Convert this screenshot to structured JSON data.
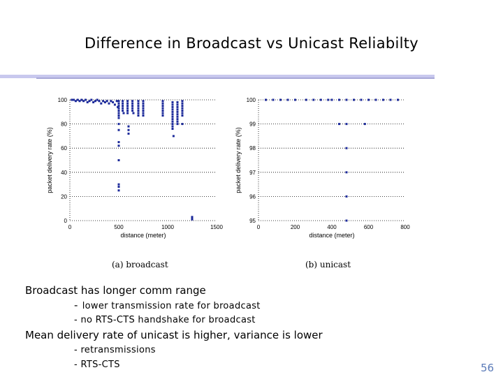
{
  "slide": {
    "title": "Difference in Broadcast vs Unicast Reliabilty",
    "page_number": "56",
    "colors": {
      "title_rule": "#c8c8ee",
      "marker": "#1c2a9a",
      "page_number": "#5a7ab8"
    }
  },
  "bullets": [
    {
      "text": "Broadcast has longer comm range",
      "subs": [
        {
          "dash": "-",
          "text": "lower transmission rate for broadcast"
        },
        {
          "dash": "-",
          "text": "no RTS-CTS handshake for broadcast"
        }
      ]
    },
    {
      "text": "Mean delivery rate of unicast is higher, variance is lower",
      "subs": [
        {
          "dash": "-",
          "text": "retransmissions"
        },
        {
          "dash": "-",
          "text": "RTS-CTS"
        }
      ]
    }
  ],
  "chart_data": [
    {
      "type": "scatter",
      "caption": "(a) broadcast",
      "xlabel": "distance (meter)",
      "ylabel": "packet delivery rate (%)",
      "xlim": [
        0,
        1500
      ],
      "ylim": [
        0,
        100
      ],
      "xticks": [
        0,
        500,
        1000,
        1500
      ],
      "yticks": [
        0,
        20,
        40,
        60,
        80,
        100
      ],
      "grid": "horizontal dotted",
      "points": [
        [
          20,
          100
        ],
        [
          40,
          100
        ],
        [
          60,
          99
        ],
        [
          80,
          100
        ],
        [
          100,
          99
        ],
        [
          120,
          100
        ],
        [
          140,
          99
        ],
        [
          160,
          100
        ],
        [
          180,
          98
        ],
        [
          200,
          99
        ],
        [
          220,
          100
        ],
        [
          240,
          98
        ],
        [
          260,
          99
        ],
        [
          280,
          100
        ],
        [
          300,
          99
        ],
        [
          320,
          97
        ],
        [
          340,
          99
        ],
        [
          360,
          98
        ],
        [
          380,
          99
        ],
        [
          400,
          97
        ],
        [
          420,
          99
        ],
        [
          440,
          98
        ],
        [
          460,
          96
        ],
        [
          480,
          99
        ],
        [
          490,
          94
        ],
        [
          500,
          99
        ],
        [
          500,
          97
        ],
        [
          500,
          95
        ],
        [
          500,
          93
        ],
        [
          500,
          91
        ],
        [
          500,
          89
        ],
        [
          500,
          87
        ],
        [
          500,
          85
        ],
        [
          500,
          80
        ],
        [
          500,
          75
        ],
        [
          500,
          65
        ],
        [
          500,
          62
        ],
        [
          500,
          50
        ],
        [
          500,
          30
        ],
        [
          500,
          28
        ],
        [
          500,
          25
        ],
        [
          540,
          99
        ],
        [
          540,
          97
        ],
        [
          540,
          95
        ],
        [
          540,
          93
        ],
        [
          540,
          91
        ],
        [
          550,
          89
        ],
        [
          590,
          99
        ],
        [
          590,
          97
        ],
        [
          590,
          95
        ],
        [
          590,
          93
        ],
        [
          590,
          91
        ],
        [
          590,
          89
        ],
        [
          600,
          78
        ],
        [
          600,
          75
        ],
        [
          600,
          72
        ],
        [
          640,
          99
        ],
        [
          640,
          97
        ],
        [
          640,
          95
        ],
        [
          640,
          93
        ],
        [
          640,
          91
        ],
        [
          650,
          89
        ],
        [
          700,
          99
        ],
        [
          700,
          97
        ],
        [
          700,
          95
        ],
        [
          700,
          93
        ],
        [
          700,
          91
        ],
        [
          700,
          89
        ],
        [
          700,
          87
        ],
        [
          750,
          99
        ],
        [
          750,
          97
        ],
        [
          750,
          95
        ],
        [
          750,
          93
        ],
        [
          750,
          91
        ],
        [
          750,
          89
        ],
        [
          750,
          87
        ],
        [
          950,
          99
        ],
        [
          950,
          97
        ],
        [
          950,
          95
        ],
        [
          950,
          93
        ],
        [
          950,
          91
        ],
        [
          950,
          89
        ],
        [
          950,
          87
        ],
        [
          1050,
          98
        ],
        [
          1050,
          96
        ],
        [
          1050,
          94
        ],
        [
          1050,
          92
        ],
        [
          1050,
          90
        ],
        [
          1050,
          88
        ],
        [
          1050,
          86
        ],
        [
          1050,
          84
        ],
        [
          1050,
          82
        ],
        [
          1050,
          80
        ],
        [
          1050,
          78
        ],
        [
          1050,
          76
        ],
        [
          1060,
          70
        ],
        [
          1100,
          98
        ],
        [
          1100,
          96
        ],
        [
          1100,
          94
        ],
        [
          1100,
          92
        ],
        [
          1100,
          90
        ],
        [
          1100,
          88
        ],
        [
          1100,
          86
        ],
        [
          1100,
          84
        ],
        [
          1100,
          82
        ],
        [
          1100,
          80
        ],
        [
          1150,
          99
        ],
        [
          1150,
          97
        ],
        [
          1150,
          95
        ],
        [
          1150,
          93
        ],
        [
          1150,
          91
        ],
        [
          1150,
          89
        ],
        [
          1150,
          87
        ],
        [
          1150,
          80
        ],
        [
          1250,
          3
        ],
        [
          1250,
          2
        ],
        [
          1250,
          1
        ]
      ]
    },
    {
      "type": "scatter",
      "caption": "(b) unicast",
      "xlabel": "distance (meter)",
      "ylabel": "packet delivery rate (%)",
      "xlim": [
        0,
        800
      ],
      "ylim": [
        95,
        100
      ],
      "xticks": [
        0,
        200,
        400,
        600,
        800
      ],
      "yticks": [
        95,
        96,
        97,
        98,
        99,
        100
      ],
      "grid": "horizontal dotted",
      "points": [
        [
          40,
          100
        ],
        [
          80,
          100
        ],
        [
          120,
          100
        ],
        [
          160,
          100
        ],
        [
          200,
          100
        ],
        [
          260,
          100
        ],
        [
          300,
          100
        ],
        [
          340,
          100
        ],
        [
          380,
          100
        ],
        [
          400,
          100
        ],
        [
          440,
          100
        ],
        [
          480,
          100
        ],
        [
          520,
          100
        ],
        [
          560,
          100
        ],
        [
          600,
          100
        ],
        [
          640,
          100
        ],
        [
          680,
          100
        ],
        [
          720,
          100
        ],
        [
          760,
          100
        ],
        [
          440,
          99
        ],
        [
          480,
          99
        ],
        [
          580,
          99
        ],
        [
          480,
          98
        ],
        [
          480,
          97
        ],
        [
          480,
          96
        ],
        [
          480,
          95
        ]
      ]
    }
  ]
}
